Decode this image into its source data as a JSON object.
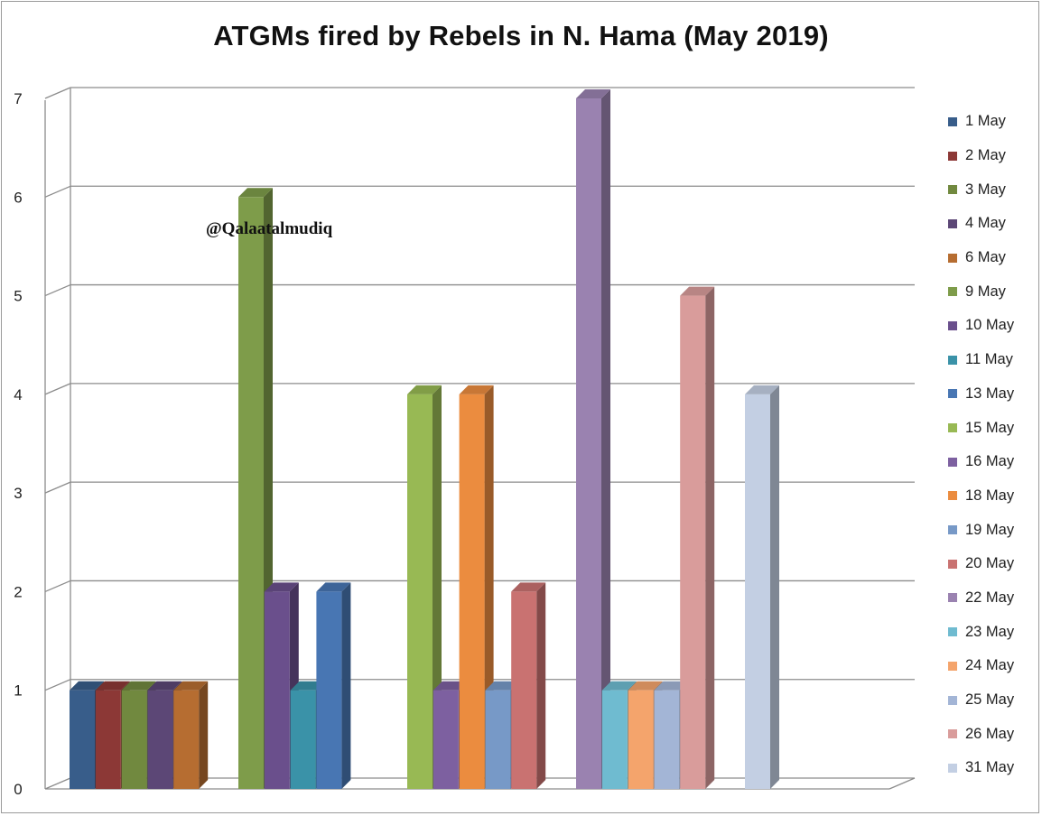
{
  "chart_data": {
    "type": "bar",
    "title": "ATGMs fired by Rebels in N. Hama (May 2019)",
    "annotation": "@Qalaatalmudiq",
    "xlabel": "",
    "ylabel": "",
    "ylim": [
      0,
      7
    ],
    "yticks": [
      "0",
      "1",
      "2",
      "3",
      "4",
      "5",
      "6",
      "7"
    ],
    "grid": true,
    "legend_position": "right",
    "three_d": true,
    "series": [
      {
        "name": "1 May",
        "value": 1,
        "color": "#385d8a"
      },
      {
        "name": "2 May",
        "value": 1,
        "color": "#8c3836"
      },
      {
        "name": "3 May",
        "value": 1,
        "color": "#71893f"
      },
      {
        "name": "4 May",
        "value": 1,
        "color": "#5c4776"
      },
      {
        "name": "6 May",
        "value": 1,
        "color": "#b66d31"
      },
      {
        "name": "9 May",
        "value": 6,
        "color": "#7e9c4a"
      },
      {
        "name": "10 May",
        "value": 2,
        "color": "#6a4f8c"
      },
      {
        "name": "11 May",
        "value": 1,
        "color": "#3a92a8"
      },
      {
        "name": "13 May",
        "value": 2,
        "color": "#4876b3"
      },
      {
        "name": "15 May",
        "value": 4,
        "color": "#98b954"
      },
      {
        "name": "16 May",
        "value": 1,
        "color": "#7d60a0"
      },
      {
        "name": "18 May",
        "value": 4,
        "color": "#eb8c3f"
      },
      {
        "name": "19 May",
        "value": 1,
        "color": "#7799c7"
      },
      {
        "name": "20 May",
        "value": 2,
        "color": "#c97271"
      },
      {
        "name": "22 May",
        "value": 7,
        "color": "#9a82b0"
      },
      {
        "name": "23 May",
        "value": 1,
        "color": "#6fbbd0"
      },
      {
        "name": "24 May",
        "value": 1,
        "color": "#f4a46c"
      },
      {
        "name": "25 May",
        "value": 1,
        "color": "#a3b5d6"
      },
      {
        "name": "26 May",
        "value": 5,
        "color": "#d99c9b"
      },
      {
        "name": "31 May",
        "value": 4,
        "color": "#c3cfe3"
      }
    ],
    "groups": [
      {
        "label": "",
        "members": [
          "1 May",
          "2 May",
          "3 May",
          "4 May",
          "6 May"
        ]
      },
      {
        "label": "",
        "members": [
          "9 May",
          "10 May",
          "11 May",
          "13 May"
        ]
      },
      {
        "label": "",
        "members": [
          "15 May",
          "16 May",
          "18 May",
          "19 May",
          "20 May"
        ]
      },
      {
        "label": "",
        "members": [
          "22 May",
          "23 May",
          "24 May",
          "25 May",
          "26 May"
        ]
      },
      {
        "label": "",
        "members": [
          "31 May"
        ]
      }
    ]
  }
}
